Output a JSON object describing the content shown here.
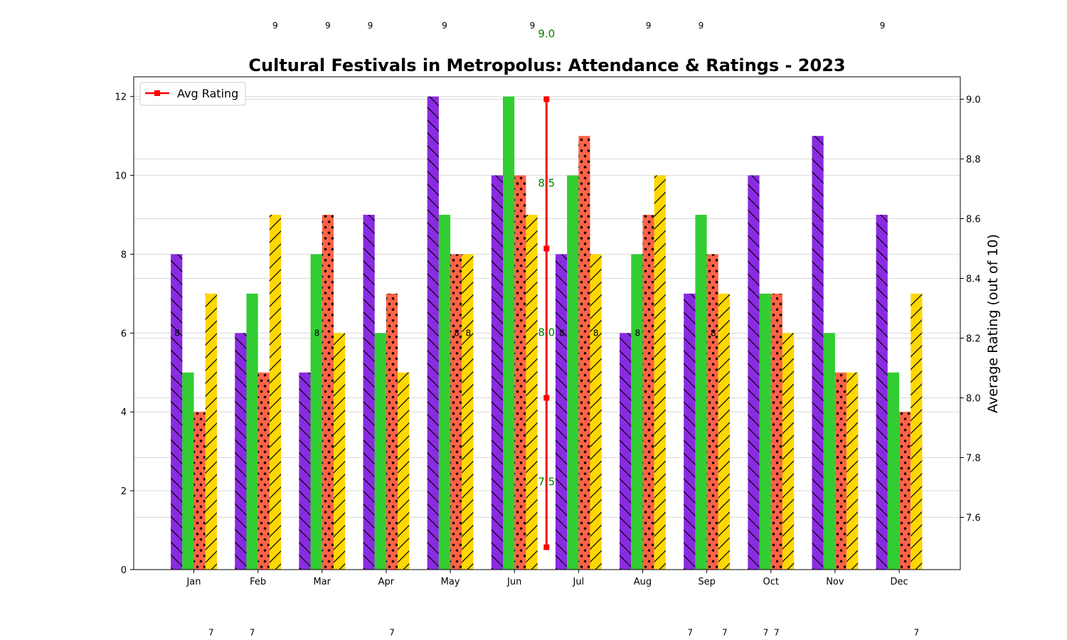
{
  "chart_data": {
    "type": "bar",
    "title": "Cultural Festivals in Metropolus: Attendance & Ratings - 2023",
    "xlabel": "",
    "ylabel": "",
    "y2label": "Average Rating (out of 10)",
    "categories": [
      "Jan",
      "Feb",
      "Mar",
      "Apr",
      "May",
      "Jun",
      "Jul",
      "Aug",
      "Sep",
      "Oct",
      "Nov",
      "Dec"
    ],
    "series": [
      {
        "values": [
          8,
          6,
          5,
          9,
          12,
          10,
          8,
          6,
          7,
          10,
          11,
          9
        ],
        "color": "#8A2BE2",
        "hatch": "backslash"
      },
      {
        "values": [
          5,
          7,
          8,
          6,
          9,
          12,
          10,
          8,
          9,
          7,
          6,
          5
        ],
        "color": "#32CD32",
        "hatch": "none"
      },
      {
        "values": [
          4,
          5,
          9,
          7,
          8,
          10,
          11,
          9,
          8,
          7,
          5,
          4
        ],
        "color": "#FF6347",
        "hatch": "dots"
      },
      {
        "values": [
          7,
          9,
          6,
          5,
          8,
          9,
          8,
          10,
          7,
          6,
          5,
          7
        ],
        "color": "#FFD700",
        "hatch": "slash"
      }
    ],
    "ylim": [
      0,
      12.5
    ],
    "yticks": [
      0,
      2,
      4,
      6,
      8,
      10,
      12
    ],
    "y2lim": [
      7.425,
      9.075
    ],
    "y2ticks": [
      7.6,
      7.8,
      8.0,
      8.2,
      8.4,
      8.6,
      8.8,
      9.0
    ],
    "grid": true,
    "rating_line": {
      "name": "Avg Rating",
      "color": "#FF0000",
      "x_position": "between Jun and Jul",
      "values": [
        7.5,
        8.0,
        8.5,
        9.0
      ],
      "labels": [
        "7.5",
        "8.0",
        "8.5",
        "9.0"
      ],
      "label_color": "#008000"
    },
    "legend": {
      "position": "top-left",
      "entries": [
        "Avg Rating"
      ]
    },
    "scattered_labels": [
      {
        "text": "9",
        "x_index": 1.27,
        "y": 13.8
      },
      {
        "text": "9",
        "x_index": 2.09,
        "y": 13.8
      },
      {
        "text": "9",
        "x_index": 2.75,
        "y": 13.8
      },
      {
        "text": "9",
        "x_index": 3.91,
        "y": 13.8
      },
      {
        "text": "9",
        "x_index": 5.28,
        "y": 13.8
      },
      {
        "text": "9",
        "x_index": 7.09,
        "y": 13.8
      },
      {
        "text": "9",
        "x_index": 7.91,
        "y": 13.8
      },
      {
        "text": "9",
        "x_index": 10.74,
        "y": 13.8
      },
      {
        "text": "8",
        "x_index": -0.26,
        "y": 6.0
      },
      {
        "text": "8",
        "x_index": 1.92,
        "y": 6.0
      },
      {
        "text": "8",
        "x_index": 4.1,
        "y": 6.0
      },
      {
        "text": "8",
        "x_index": 4.28,
        "y": 6.0
      },
      {
        "text": "8",
        "x_index": 5.74,
        "y": 6.0
      },
      {
        "text": "8",
        "x_index": 6.27,
        "y": 6.0
      },
      {
        "text": "8",
        "x_index": 6.92,
        "y": 6.0
      },
      {
        "text": "8",
        "x_index": 8.1,
        "y": 6.0
      },
      {
        "text": "7",
        "x_index": 0.27,
        "y": -1.6
      },
      {
        "text": "7",
        "x_index": 0.91,
        "y": -1.6
      },
      {
        "text": "7",
        "x_index": 3.09,
        "y": -1.6
      },
      {
        "text": "7",
        "x_index": 7.74,
        "y": -1.6
      },
      {
        "text": "7",
        "x_index": 8.28,
        "y": -1.6
      },
      {
        "text": "7",
        "x_index": 8.92,
        "y": -1.6
      },
      {
        "text": "7",
        "x_index": 9.09,
        "y": -1.6
      },
      {
        "text": "7",
        "x_index": 11.27,
        "y": -1.6
      }
    ]
  }
}
